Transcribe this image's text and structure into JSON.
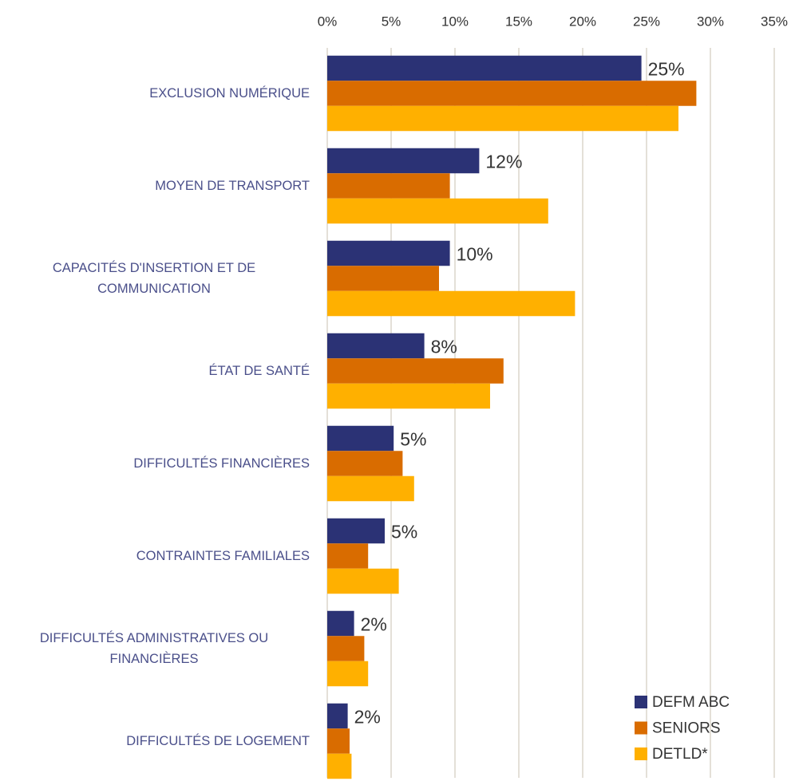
{
  "chart_data": {
    "type": "bar",
    "orientation": "horizontal",
    "categories": [
      "EXCLUSION NUMÉRIQUE",
      "MOYEN DE TRANSPORT",
      "CAPACITÉS D'INSERTION ET DE COMMUNICATION",
      "ÉTAT DE SANTÉ",
      "DIFFICULTÉS FINANCIÈRES",
      "CONTRAINTES FAMILIALES",
      "DIFFICULTÉS ADMINISTRATIVES OU FINANCIÈRES",
      "DIFFICULTÉS DE LOGEMENT"
    ],
    "series": [
      {
        "name": "DEFM ABC",
        "color": "#2b3275",
        "values": [
          24.6,
          11.9,
          9.6,
          7.6,
          5.2,
          4.5,
          2.1,
          1.6
        ],
        "value_labels": [
          "25%",
          "12%",
          "10%",
          "8%",
          "5%",
          "5%",
          "2%",
          "2%"
        ]
      },
      {
        "name": "SENIORS",
        "color": "#d96c00",
        "values": [
          28.9,
          9.6,
          8.75,
          13.8,
          5.9,
          3.2,
          2.9,
          1.75
        ]
      },
      {
        "name": "DETLD*",
        "color": "#ffb000",
        "values": [
          27.5,
          17.3,
          19.4,
          12.75,
          6.8,
          5.6,
          3.2,
          1.9
        ]
      }
    ],
    "xlim": [
      0,
      35
    ],
    "xticks": [
      {
        "value": 0,
        "label": "0%"
      },
      {
        "value": 5,
        "label": "5%"
      },
      {
        "value": 10,
        "label": "10%"
      },
      {
        "value": 15,
        "label": "15%"
      },
      {
        "value": 20,
        "label": "20%"
      },
      {
        "value": 25,
        "label": "25%"
      },
      {
        "value": 30,
        "label": "30%"
      },
      {
        "value": 35,
        "label": "35%"
      }
    ],
    "grid": true,
    "legend": "lower right"
  }
}
